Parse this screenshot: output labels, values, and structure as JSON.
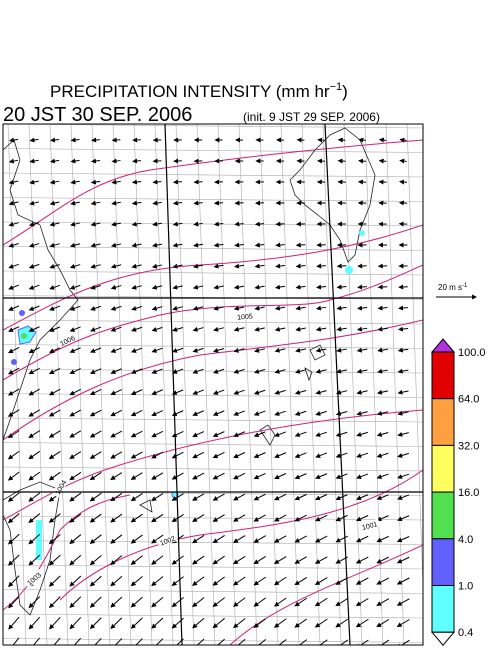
{
  "header": {
    "title": "PRECIPITATION INTENSITY (mm hr",
    "title_sup": "−1",
    "title_end": ")",
    "valid_time": "20 JST 30 SEP. 2006",
    "init_time": "(init. 9 JST 29 SEP. 2006)"
  },
  "wind_reference": {
    "label": "20 m s",
    "label_sup": "-1"
  },
  "isobar_labels": [
    "1005",
    "1006",
    "1004",
    "1002",
    "1001",
    "1003"
  ],
  "colorbar": {
    "labels": [
      "100.0",
      "64.0",
      "32.0",
      "16.0",
      "4.0",
      "1.0",
      "0.4"
    ],
    "colors": [
      "#b030e0",
      "#e00000",
      "#ffa040",
      "#ffff60",
      "#50e050",
      "#6060ff",
      "#60ffff",
      "#ffffff"
    ]
  }
}
